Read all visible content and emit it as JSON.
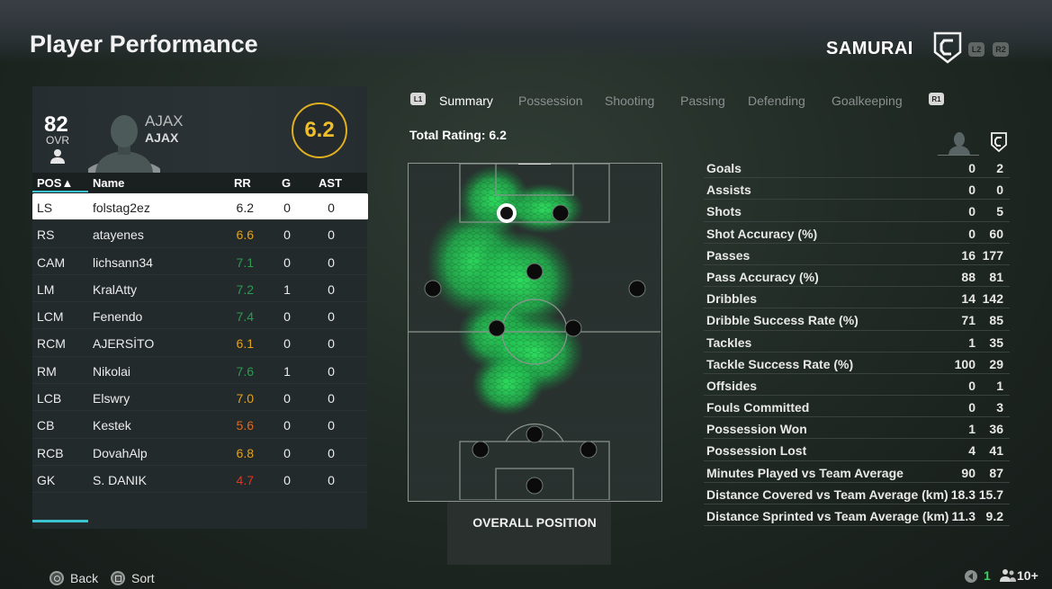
{
  "header": {
    "title": "Player Performance",
    "team_name": "SAMURAI",
    "l2": "L2",
    "r2": "R2"
  },
  "player": {
    "ovr_value": "82",
    "ovr_label": "OVR",
    "club_top": "AJAX",
    "club_bottom": "AJAX",
    "match_rating": "6.2"
  },
  "table": {
    "columns": {
      "pos": "POS▲",
      "name": "Name",
      "rr": "RR",
      "g": "G",
      "ast": "AST"
    },
    "rows": [
      {
        "pos": "LS",
        "name": "folstag2ez",
        "rr": "6.2",
        "g": "0",
        "ast": "0",
        "rr_color": "#222222"
      },
      {
        "pos": "RS",
        "name": "atayenes",
        "rr": "6.6",
        "g": "0",
        "ast": "0",
        "rr_color": "#e3a21c"
      },
      {
        "pos": "CAM",
        "name": "lichsann34",
        "rr": "7.1",
        "g": "0",
        "ast": "0",
        "rr_color": "#2f9a52"
      },
      {
        "pos": "LM",
        "name": "KralAtty",
        "rr": "7.2",
        "g": "1",
        "ast": "0",
        "rr_color": "#2f9a52"
      },
      {
        "pos": "LCM",
        "name": "Fenendo",
        "rr": "7.4",
        "g": "0",
        "ast": "0",
        "rr_color": "#2f9a52"
      },
      {
        "pos": "RCM",
        "name": "AJERSİTO",
        "rr": "6.1",
        "g": "0",
        "ast": "0",
        "rr_color": "#e3a21c"
      },
      {
        "pos": "RM",
        "name": "Nikolai",
        "rr": "7.6",
        "g": "1",
        "ast": "0",
        "rr_color": "#2f9a52"
      },
      {
        "pos": "LCB",
        "name": "Elswry",
        "rr": "7.0",
        "g": "0",
        "ast": "0",
        "rr_color": "#e3a21c"
      },
      {
        "pos": "CB",
        "name": "Kestek",
        "rr": "5.6",
        "g": "0",
        "ast": "0",
        "rr_color": "#e0681f"
      },
      {
        "pos": "RCB",
        "name": "DovahAlp",
        "rr": "6.8",
        "g": "0",
        "ast": "0",
        "rr_color": "#e3a21c"
      },
      {
        "pos": "GK",
        "name": "S. DANIK",
        "rr": "4.7",
        "g": "0",
        "ast": "0",
        "rr_color": "#e0361f"
      }
    ]
  },
  "tabs": {
    "l1": "L1",
    "r1": "R1",
    "items": [
      "Summary",
      "Possession",
      "Shooting",
      "Passing",
      "Defending",
      "Goalkeeping"
    ],
    "active": "Summary"
  },
  "summary": {
    "total_rating": "Total Rating: 6.2",
    "pitch_label": "OVERALL POSITION"
  },
  "stats": [
    {
      "label": "Goals",
      "player": "0",
      "team": "2"
    },
    {
      "label": "Assists",
      "player": "0",
      "team": "0"
    },
    {
      "label": "Shots",
      "player": "0",
      "team": "5"
    },
    {
      "label": "Shot Accuracy (%)",
      "player": "0",
      "team": "60"
    },
    {
      "label": "Passes",
      "player": "16",
      "team": "177"
    },
    {
      "label": "Pass Accuracy (%)",
      "player": "88",
      "team": "81"
    },
    {
      "label": "Dribbles",
      "player": "14",
      "team": "142"
    },
    {
      "label": "Dribble Success Rate (%)",
      "player": "71",
      "team": "85"
    },
    {
      "label": "Tackles",
      "player": "1",
      "team": "35"
    },
    {
      "label": "Tackle Success Rate (%)",
      "player": "100",
      "team": "29"
    },
    {
      "label": "Offsides",
      "player": "0",
      "team": "1"
    },
    {
      "label": "Fouls Committed",
      "player": "0",
      "team": "3"
    },
    {
      "label": "Possession Won",
      "player": "1",
      "team": "36"
    },
    {
      "label": "Possession Lost",
      "player": "4",
      "team": "41"
    },
    {
      "label": "Minutes Played vs Team Average",
      "player": "90",
      "team": "87"
    },
    {
      "label": "Distance Covered vs Team Average (km)",
      "player": "18.3",
      "team": "15.7"
    },
    {
      "label": "Distance Sprinted vs Team Average (km)",
      "player": "11.3",
      "team": "9.2"
    }
  ],
  "footer": {
    "back_label": "Back",
    "sort_label": "Sort",
    "status_count": "1",
    "party_count": "10+"
  },
  "colors": {
    "accent": "#3bc4d0",
    "rating_ring": "#e0b021",
    "heatmap": "#22d25a"
  }
}
